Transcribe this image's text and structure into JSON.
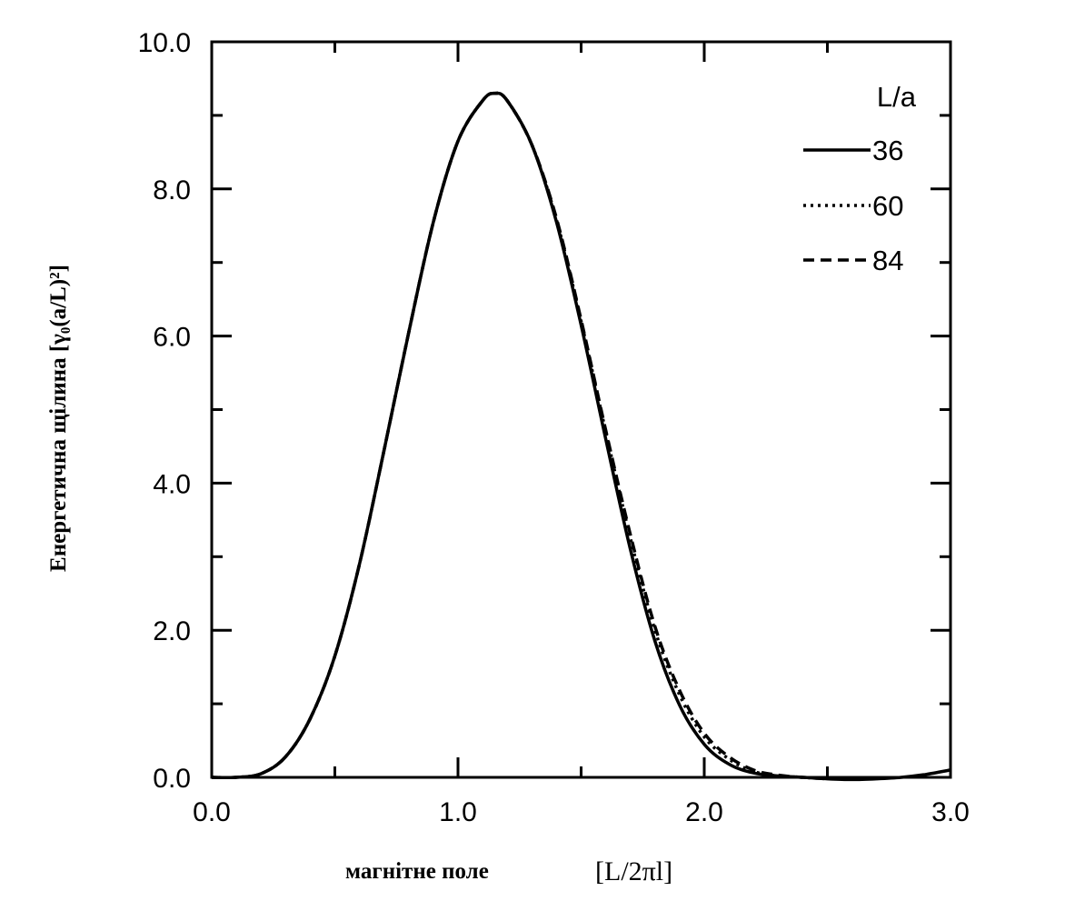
{
  "chart_data": {
    "type": "line",
    "xlabel": "магнітне поле",
    "xunit": "[L/2πl]",
    "ylabel": "Енергетична щілина [γ₀(a/L)²]",
    "xlim": [
      0,
      3
    ],
    "ylim": [
      0,
      10
    ],
    "x_ticks": [
      "0.0",
      "1.0",
      "2.0",
      "3.0"
    ],
    "y_ticks": [
      "0.0",
      "2.0",
      "4.0",
      "6.0",
      "8.0",
      "10.0"
    ],
    "legend": {
      "title": "L/a",
      "placement": "top-right"
    },
    "series": [
      {
        "name": "36",
        "style": "solid",
        "x": [
          0.0,
          0.1,
          0.2,
          0.3,
          0.4,
          0.5,
          0.6,
          0.7,
          0.8,
          0.9,
          1.0,
          1.1,
          1.15,
          1.2,
          1.3,
          1.4,
          1.5,
          1.6,
          1.7,
          1.8,
          1.9,
          2.0,
          2.1,
          2.2,
          2.3,
          2.4,
          2.5,
          2.6,
          2.7,
          2.8,
          2.9,
          3.0
        ],
        "values": [
          0.0,
          0.0,
          0.05,
          0.28,
          0.8,
          1.65,
          2.9,
          4.45,
          6.05,
          7.55,
          8.65,
          9.2,
          9.3,
          9.2,
          8.6,
          7.55,
          6.15,
          4.6,
          3.1,
          1.85,
          0.98,
          0.45,
          0.18,
          0.06,
          0.02,
          0.0,
          -0.02,
          -0.03,
          -0.02,
          0.0,
          0.04,
          0.1
        ]
      },
      {
        "name": "60",
        "style": "dotted",
        "x": [
          0.0,
          0.1,
          0.2,
          0.3,
          0.4,
          0.5,
          0.6,
          0.7,
          0.8,
          0.9,
          1.0,
          1.1,
          1.15,
          1.2,
          1.3,
          1.4,
          1.5,
          1.6,
          1.7,
          1.8,
          1.9,
          2.0,
          2.1,
          2.2,
          2.3,
          2.4,
          2.5
        ],
        "values": [
          0.0,
          0.0,
          0.05,
          0.28,
          0.8,
          1.65,
          2.9,
          4.45,
          6.05,
          7.55,
          8.65,
          9.2,
          9.3,
          9.2,
          8.6,
          7.58,
          6.2,
          4.7,
          3.25,
          2.0,
          1.12,
          0.55,
          0.25,
          0.08,
          0.02,
          0.0,
          -0.02
        ]
      },
      {
        "name": "84",
        "style": "dashed",
        "x": [
          0.0,
          0.1,
          0.2,
          0.3,
          0.4,
          0.5,
          0.6,
          0.7,
          0.8,
          0.9,
          1.0,
          1.1,
          1.15,
          1.2,
          1.3,
          1.4,
          1.5,
          1.6,
          1.7,
          1.8,
          1.9,
          2.0,
          2.1,
          2.2,
          2.3,
          2.4,
          2.5
        ],
        "values": [
          0.0,
          0.0,
          0.05,
          0.28,
          0.8,
          1.65,
          2.9,
          4.45,
          6.05,
          7.55,
          8.65,
          9.2,
          9.3,
          9.2,
          8.6,
          7.6,
          6.22,
          4.72,
          3.3,
          2.05,
          1.18,
          0.6,
          0.28,
          0.1,
          0.03,
          0.0,
          -0.02
        ]
      }
    ]
  }
}
